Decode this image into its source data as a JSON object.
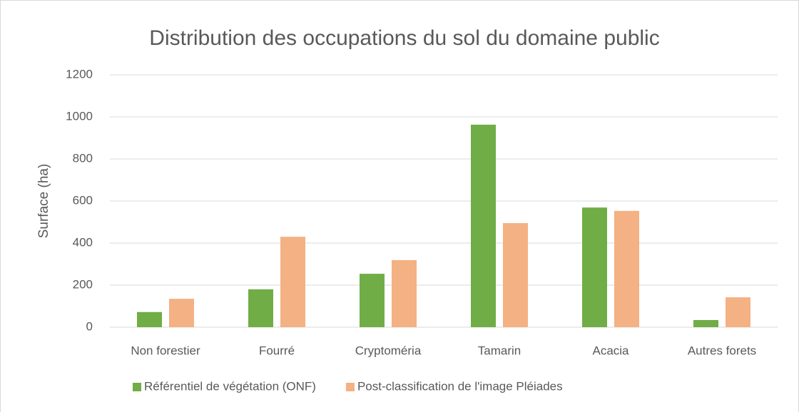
{
  "chart_data": {
    "type": "bar",
    "title": "Distribution des occupations du sol du domaine public",
    "y_label": "Surface (ha)",
    "categories": [
      "Non forestier",
      "Fourré",
      "Cryptoméria",
      "Tamarin",
      "Acacia",
      "Autres forets"
    ],
    "series": [
      {
        "name": "Référentiel de végétation (ONF)",
        "color": "#70ad47",
        "values": [
          72,
          180,
          254,
          963,
          569,
          34
        ]
      },
      {
        "name": "Post-classification de l'image Pléiades",
        "color": "#f4b183",
        "values": [
          135,
          430,
          319,
          495,
          553,
          142
        ]
      }
    ],
    "ylim": [
      0,
      1200
    ],
    "yticks": [
      0,
      200,
      400,
      600,
      800,
      1000,
      1200
    ],
    "grid": true,
    "legend": "bottom"
  }
}
